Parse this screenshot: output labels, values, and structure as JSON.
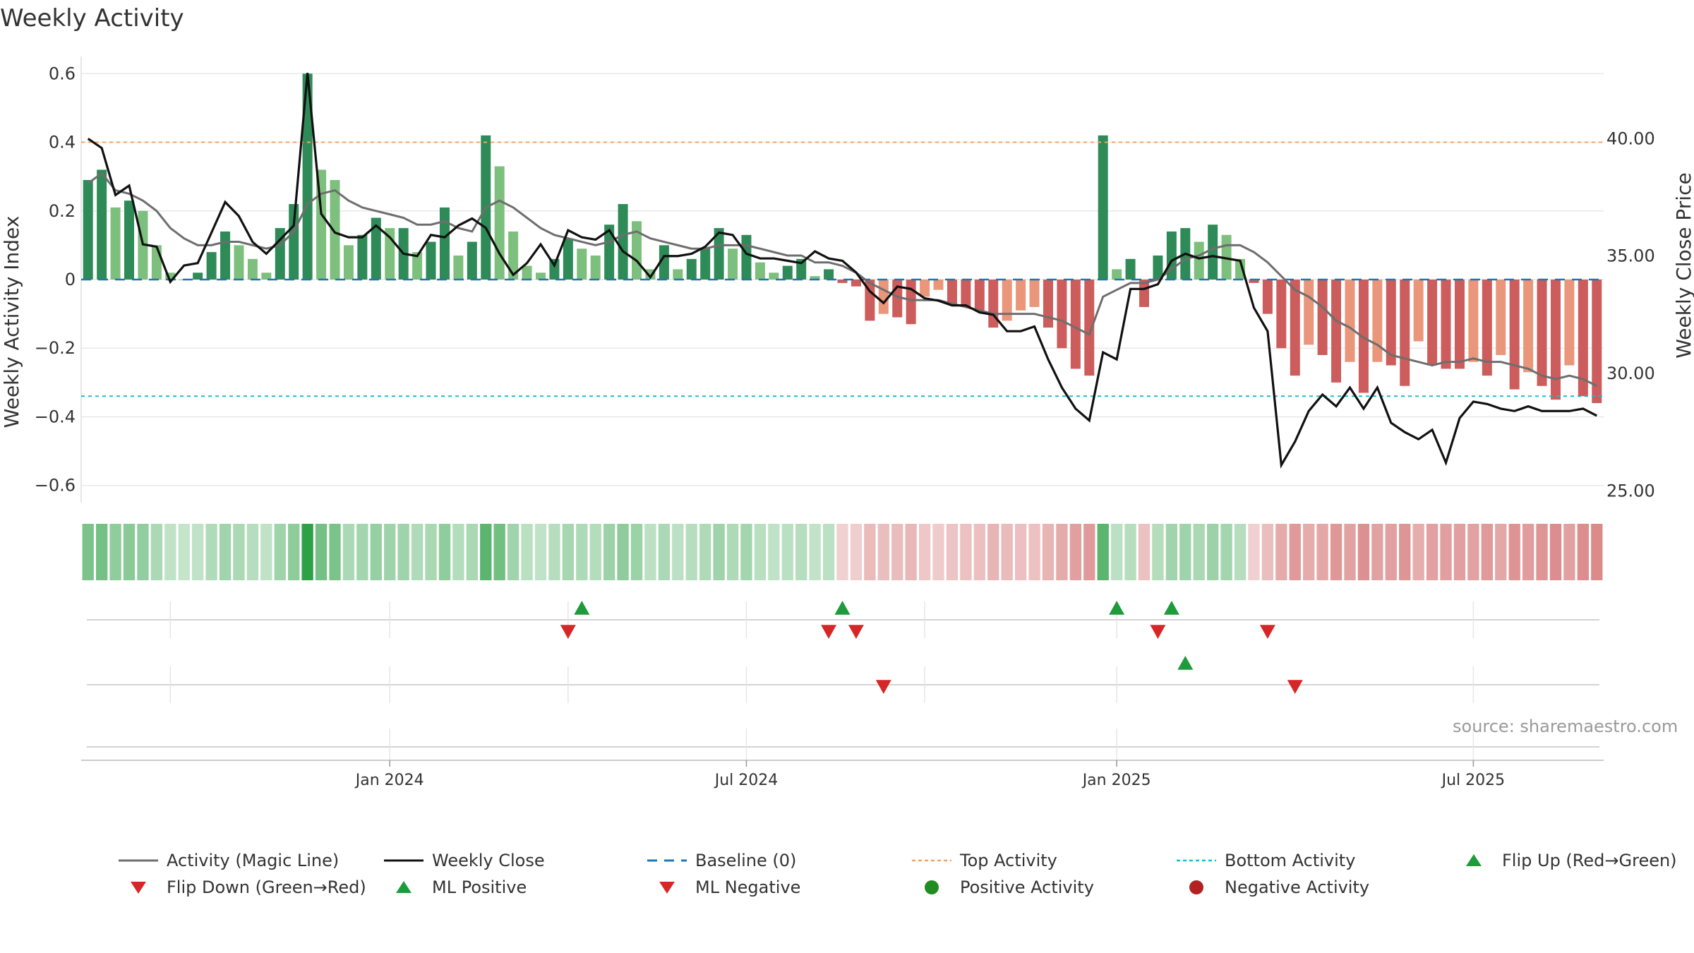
{
  "chart_data": {
    "type": "bar",
    "title": "Weekly Activity",
    "ylabel": "Weekly Activity Index",
    "ylabel_right": "Weekly Close Price",
    "ylim": [
      -0.65,
      0.65
    ],
    "ylim_right": [
      24.5,
      43.5
    ],
    "y_ticks": [
      0.6,
      0.4,
      0.2,
      0,
      -0.2,
      -0.4,
      -0.6
    ],
    "y_tick_labels": [
      "0.6",
      "0.4",
      "0.2",
      "0",
      "−0.2",
      "−0.4",
      "−0.6"
    ],
    "y_right_ticks": [
      40,
      35,
      30,
      25
    ],
    "y_right_tick_labels": [
      "40.00",
      "35.00",
      "30.00",
      "25.00"
    ],
    "x_tick_labels": [
      {
        "index": 22,
        "label": "Jan 2024"
      },
      {
        "index": 48,
        "label": "Jul 2024"
      },
      {
        "index": 75,
        "label": "Jan 2025"
      },
      {
        "index": 101,
        "label": "Jul 2025"
      }
    ],
    "activity": [
      0.29,
      0.32,
      0.21,
      0.23,
      0.2,
      0.1,
      0.02,
      0.0,
      0.02,
      0.08,
      0.14,
      0.1,
      0.06,
      0.02,
      0.15,
      0.22,
      0.6,
      0.32,
      0.29,
      0.1,
      0.13,
      0.18,
      0.15,
      0.15,
      0.08,
      0.11,
      0.21,
      0.07,
      0.11,
      0.42,
      0.33,
      0.14,
      0.04,
      0.02,
      0.06,
      0.12,
      0.09,
      0.07,
      0.16,
      0.22,
      0.17,
      0.03,
      0.1,
      0.03,
      0.06,
      0.09,
      0.15,
      0.09,
      0.13,
      0.05,
      0.02,
      0.04,
      0.06,
      0.01,
      0.03,
      -0.01,
      -0.02,
      -0.12,
      -0.1,
      -0.11,
      -0.13,
      -0.05,
      -0.03,
      -0.07,
      -0.08,
      -0.09,
      -0.14,
      -0.12,
      -0.09,
      -0.08,
      -0.14,
      -0.2,
      -0.26,
      -0.28,
      0.42,
      0.03,
      0.06,
      -0.08,
      0.07,
      0.14,
      0.15,
      0.11,
      0.16,
      0.13,
      0.06,
      -0.01,
      -0.1,
      -0.2,
      -0.28,
      -0.19,
      -0.22,
      -0.3,
      -0.24,
      -0.33,
      -0.24,
      -0.25,
      -0.31,
      -0.18,
      -0.25,
      -0.26,
      -0.26,
      -0.24,
      -0.28,
      -0.22,
      -0.32,
      -0.27,
      -0.31,
      -0.35,
      -0.25,
      -0.34,
      -0.36
    ],
    "magic_line": [
      0.28,
      0.31,
      0.26,
      0.25,
      0.23,
      0.2,
      0.15,
      0.12,
      0.1,
      0.1,
      0.11,
      0.11,
      0.1,
      0.09,
      0.1,
      0.14,
      0.22,
      0.25,
      0.26,
      0.23,
      0.21,
      0.2,
      0.19,
      0.18,
      0.16,
      0.16,
      0.17,
      0.15,
      0.14,
      0.21,
      0.23,
      0.21,
      0.18,
      0.15,
      0.13,
      0.12,
      0.11,
      0.1,
      0.11,
      0.13,
      0.14,
      0.12,
      0.11,
      0.1,
      0.09,
      0.09,
      0.1,
      0.1,
      0.1,
      0.09,
      0.08,
      0.07,
      0.07,
      0.05,
      0.05,
      0.04,
      0.02,
      -0.01,
      -0.03,
      -0.05,
      -0.06,
      -0.06,
      -0.06,
      -0.07,
      -0.08,
      -0.09,
      -0.1,
      -0.1,
      -0.1,
      -0.1,
      -0.11,
      -0.12,
      -0.14,
      -0.16,
      -0.05,
      -0.03,
      -0.01,
      -0.01,
      0.0,
      0.03,
      0.06,
      0.07,
      0.09,
      0.1,
      0.1,
      0.08,
      0.05,
      0.01,
      -0.03,
      -0.05,
      -0.08,
      -0.12,
      -0.14,
      -0.17,
      -0.19,
      -0.22,
      -0.23,
      -0.24,
      -0.25,
      -0.24,
      -0.24,
      -0.23,
      -0.24,
      -0.24,
      -0.25,
      -0.26,
      -0.28,
      -0.29,
      -0.28,
      -0.29,
      -0.31
    ],
    "weekly_close": [
      40.0,
      39.6,
      37.6,
      38.0,
      35.5,
      35.4,
      33.9,
      34.6,
      34.7,
      36.0,
      37.3,
      36.7,
      35.6,
      35.1,
      35.7,
      36.3,
      42.8,
      36.8,
      36.0,
      35.8,
      35.8,
      36.3,
      35.8,
      35.1,
      35.0,
      35.9,
      35.8,
      36.3,
      36.6,
      36.2,
      35.1,
      34.2,
      34.7,
      35.5,
      34.6,
      36.1,
      35.8,
      35.7,
      36.1,
      35.2,
      34.8,
      34.1,
      35.0,
      35.0,
      35.1,
      35.4,
      36.0,
      35.9,
      35.1,
      34.9,
      34.9,
      34.8,
      34.7,
      35.2,
      34.9,
      34.8,
      34.3,
      33.5,
      33.0,
      33.7,
      33.6,
      33.2,
      33.1,
      32.9,
      32.9,
      32.6,
      32.5,
      31.8,
      31.8,
      32.0,
      30.6,
      29.4,
      28.5,
      28.0,
      30.9,
      30.6,
      33.6,
      33.6,
      33.8,
      34.8,
      35.1,
      34.9,
      35.0,
      34.9,
      34.8,
      32.8,
      31.8,
      26.1,
      27.1,
      28.4,
      29.1,
      28.6,
      29.4,
      28.5,
      29.4,
      27.9,
      27.5,
      27.2,
      27.6,
      26.2,
      28.1,
      28.8,
      28.7,
      28.5,
      28.4,
      28.6,
      28.4,
      28.4,
      28.4,
      28.5,
      28.2
    ],
    "top_activity": 0.4,
    "bottom_activity": -0.34,
    "baseline": 0,
    "flip_up_indices": [
      36,
      55,
      75,
      79
    ],
    "flip_down_indices": [
      35,
      54,
      56,
      78,
      86
    ],
    "ml_positive_indices": [
      80
    ],
    "ml_negative_indices": [
      58,
      88
    ],
    "legend": [
      "Activity (Magic Line)",
      "Weekly Close",
      "Baseline (0)",
      "Top Activity",
      "Bottom Activity",
      "Flip Up (Red→Green)",
      "Flip Down (Green→Red)",
      "ML Positive",
      "ML Negative",
      "Positive Activity",
      "Negative Activity"
    ]
  },
  "source": "source: sharemaestro.com",
  "colors": {
    "green_dark": "#2e8b57",
    "green_light": "#7dbf7d",
    "red_dark": "#cd5c5c",
    "red_light": "#e9967a",
    "magic_line": "#6e6e6e",
    "close": "#111111",
    "baseline": "#1f77b4",
    "top": "#f4a460",
    "bottom": "#17becf",
    "marker_green": "#1e9b3a",
    "marker_red": "#d62728",
    "dot_green": "#228b22",
    "dot_red": "#b22222"
  }
}
